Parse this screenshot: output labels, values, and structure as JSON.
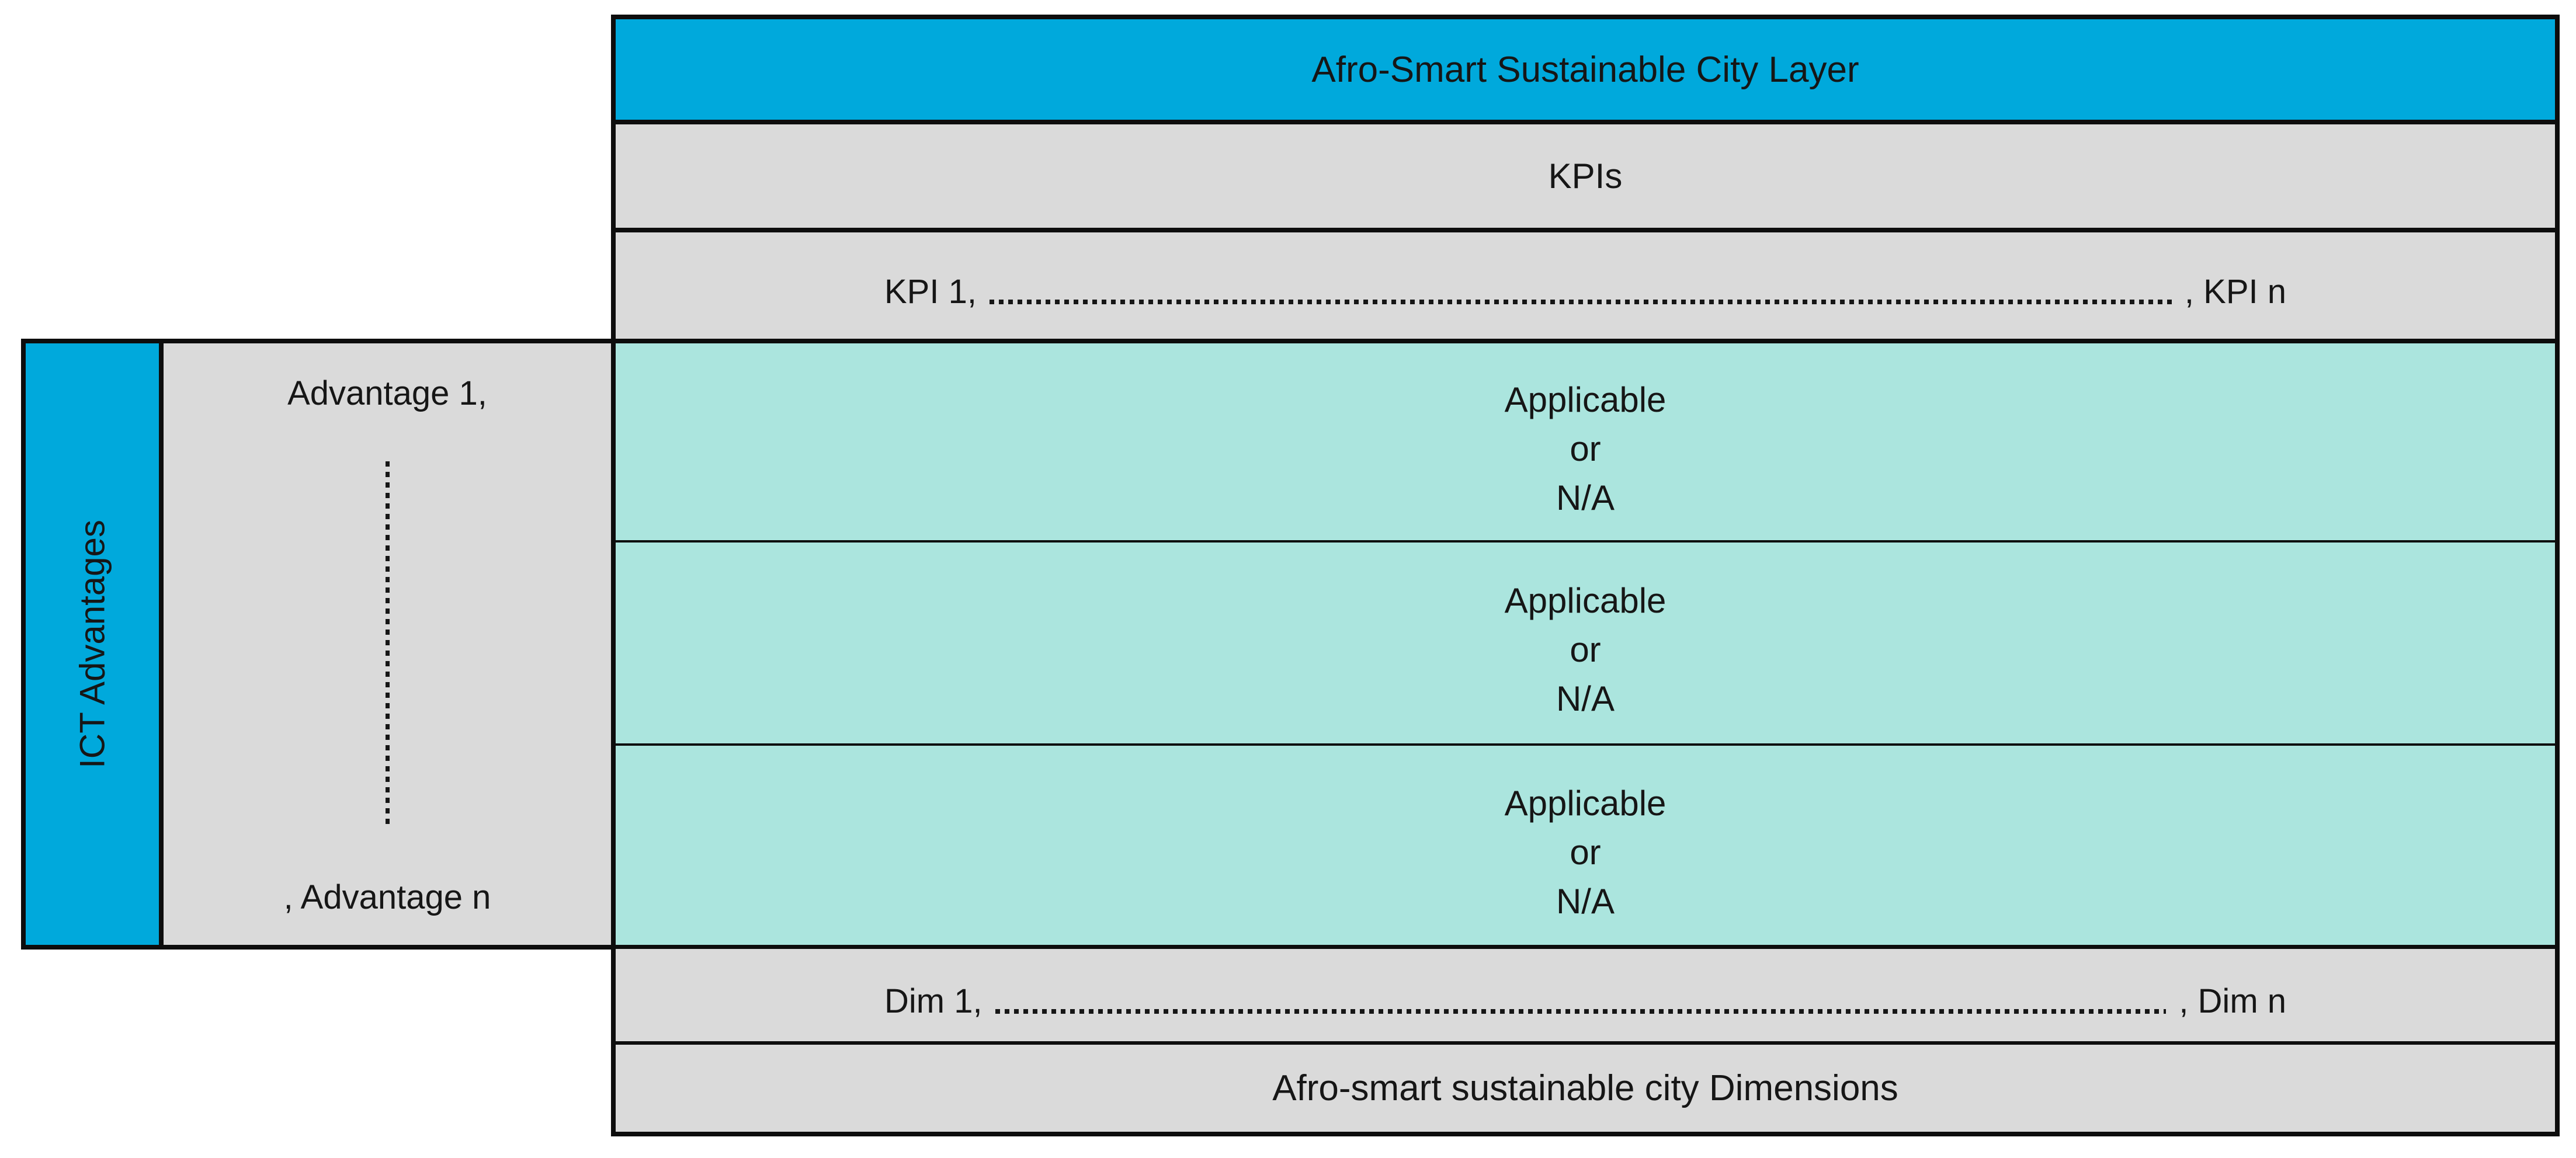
{
  "main": {
    "title": "Afro-Smart Sustainable City Layer",
    "kpis_heading": "KPIs",
    "kpi_list": {
      "start": "KPI 1,",
      "end": ", KPI n"
    },
    "applicable_cells": [
      [
        "Applicable",
        "or",
        "N/A"
      ],
      [
        "Applicable",
        "or",
        "N/A"
      ],
      [
        "Applicable",
        "or",
        "N/A"
      ]
    ],
    "dim_list": {
      "start": "Dim 1,",
      "end": ", Dim n"
    },
    "dimensions_heading": "Afro-smart sustainable city Dimensions"
  },
  "sidebar": {
    "bar_label": "ICT Advantages",
    "advantage_start": "Advantage 1,",
    "advantage_end": ", Advantage n"
  },
  "colors": {
    "cyan": "#00a9dc",
    "teal": "#abe5de",
    "gray": "#dadada",
    "border": "#0d0d0d",
    "ink": "#161616"
  }
}
